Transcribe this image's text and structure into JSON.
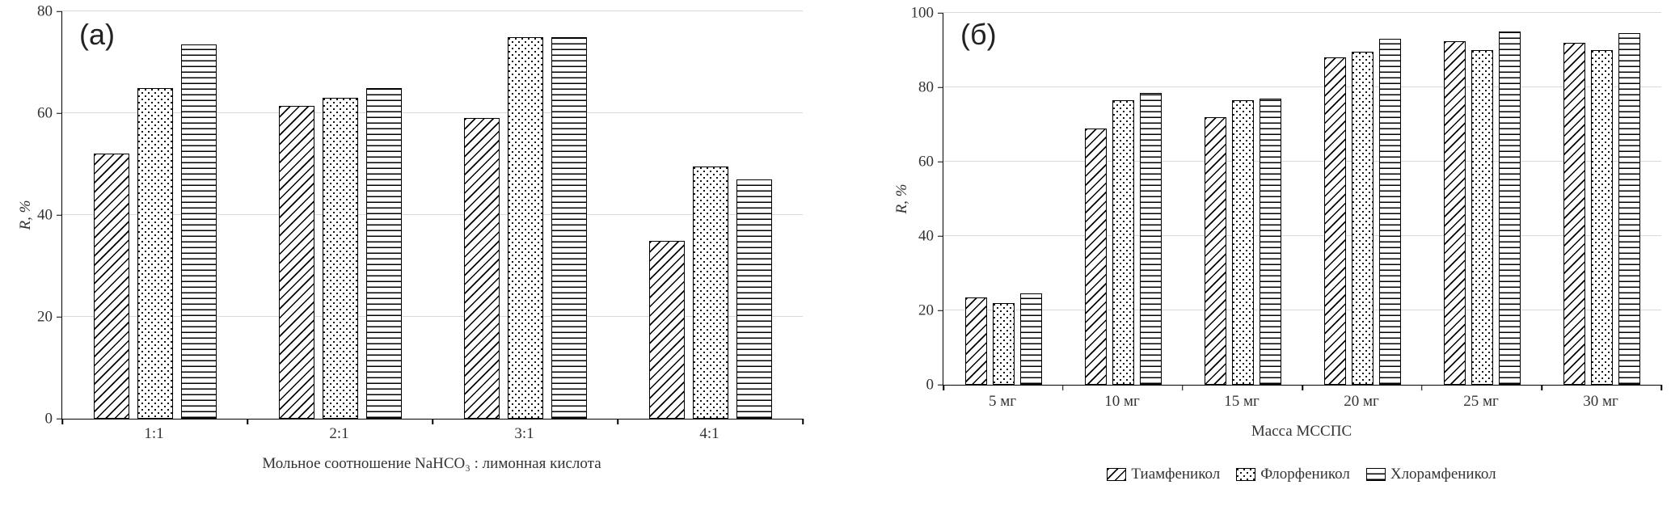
{
  "figure": {
    "panels": [
      "(а)",
      "(б)"
    ]
  },
  "chart_data": [
    {
      "type": "bar",
      "title": "(а)",
      "ylabel": "R, %",
      "xlabel": "Мольное соотношение NaHCO₃ : лимонная кислота",
      "categories": [
        "1:1",
        "2:1",
        "3:1",
        "4:1"
      ],
      "series": [
        {
          "name": "Тиамфеникол",
          "pattern": "diagonal",
          "values": [
            52,
            61.5,
            59,
            35
          ]
        },
        {
          "name": "Флорфеникол",
          "pattern": "dots",
          "values": [
            65,
            63,
            75,
            49.5
          ]
        },
        {
          "name": "Хлорамфеникол",
          "pattern": "horizontal",
          "values": [
            73.5,
            65,
            75,
            47
          ]
        }
      ],
      "ylim": [
        0,
        80
      ],
      "yticks": [
        0,
        20,
        40,
        60,
        80
      ],
      "grid": true,
      "legend": false
    },
    {
      "type": "bar",
      "title": "(б)",
      "ylabel": "R, %",
      "xlabel": "Масса МССПС",
      "categories": [
        "5 мг",
        "10 мг",
        "15 мг",
        "20 мг",
        "25 мг",
        "30 мг"
      ],
      "series": [
        {
          "name": "Тиамфеникол",
          "pattern": "diagonal",
          "values": [
            23.5,
            69,
            72,
            88,
            92.5,
            92
          ]
        },
        {
          "name": "Флорфеникол",
          "pattern": "dots",
          "values": [
            22,
            76.5,
            76.5,
            89.5,
            90,
            90
          ]
        },
        {
          "name": "Хлорамфеникол",
          "pattern": "horizontal",
          "values": [
            24.5,
            78.5,
            77,
            93,
            95,
            94.5
          ]
        }
      ],
      "ylim": [
        0,
        100
      ],
      "yticks": [
        0,
        20,
        40,
        60,
        80,
        100
      ],
      "grid": true,
      "legend": true,
      "legend_position": "bottom"
    }
  ]
}
